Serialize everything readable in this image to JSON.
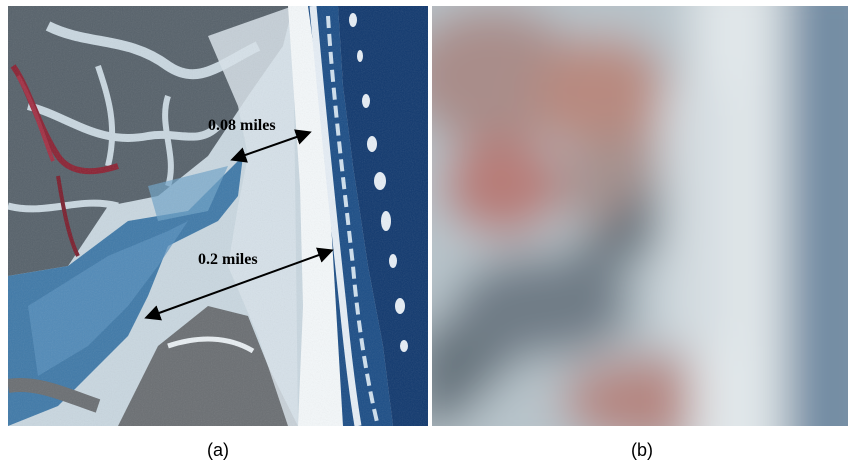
{
  "panels": [
    {
      "id": "a",
      "caption": "(a)",
      "annotations": [
        {
          "label": "0.08 miles"
        },
        {
          "label": "0.2 miles"
        }
      ]
    },
    {
      "id": "b",
      "caption": "(b)"
    }
  ],
  "colors": {
    "ocean_deep": "#10386e",
    "ocean": "#1d4f8a",
    "surf": "#dfeaf4",
    "beach": "#f2f6f8",
    "lagoon": "#3f79a8",
    "lagoon_light": "#6ea3c8",
    "sand_flat": "#c9d7e0",
    "dark_land": "#4e5a5e",
    "vegetation_red": "#8a2233",
    "arrow": "#000000"
  }
}
